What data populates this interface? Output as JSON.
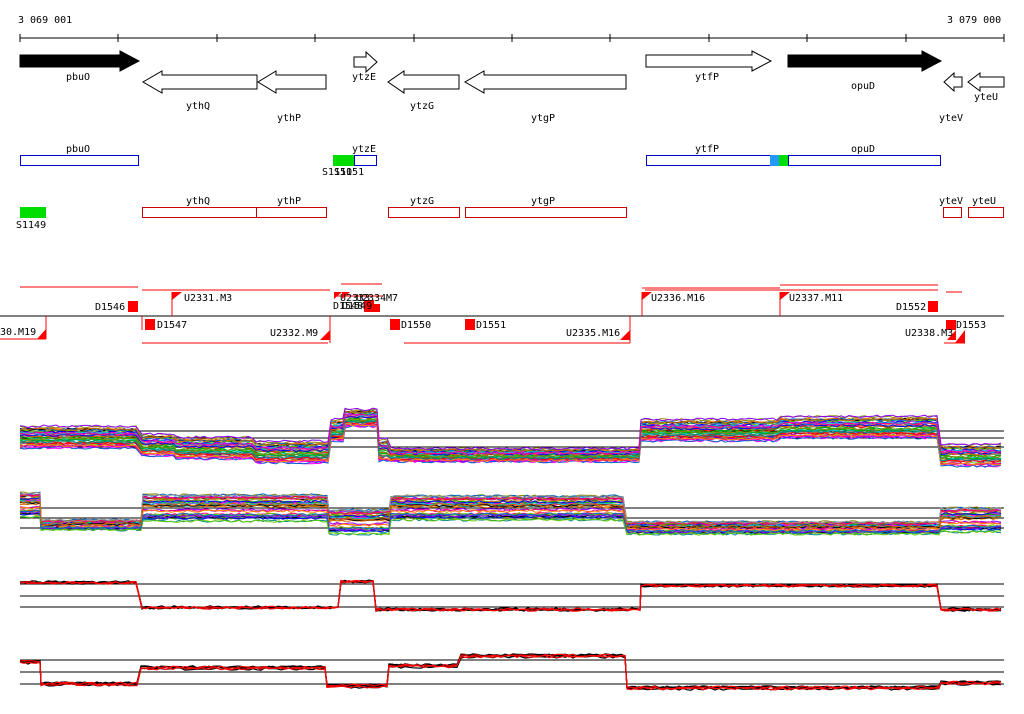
{
  "ruler": {
    "start_label": "3 069 001",
    "end_label": "3 079 000"
  },
  "genes": [
    {
      "name": "pbuO",
      "strand": "+",
      "filled": true
    },
    {
      "name": "ythQ",
      "strand": "-",
      "filled": false
    },
    {
      "name": "ythP",
      "strand": "-",
      "filled": false
    },
    {
      "name": "ytzE",
      "strand": "+",
      "filled": false
    },
    {
      "name": "ytzG",
      "strand": "-",
      "filled": false
    },
    {
      "name": "ytgP",
      "strand": "-",
      "filled": false
    },
    {
      "name": "ytfP",
      "strand": "+",
      "filled": false
    },
    {
      "name": "opuD",
      "strand": "+",
      "filled": true
    },
    {
      "name": "yteV",
      "strand": "-",
      "filled": false
    },
    {
      "name": "yteU",
      "strand": "-",
      "filled": false
    }
  ],
  "plus_boxes": [
    "pbuO",
    "ytzE",
    "ytfP",
    "opuD"
  ],
  "minus_boxes": [
    "ythQ",
    "ythP",
    "ytzG",
    "ytgP",
    "yteV",
    "yteU"
  ],
  "sigma_labels": [
    "S1150",
    "S1151",
    "S1149"
  ],
  "upper_segment_labels": [
    "D1546",
    "U2331.M3",
    "U2333",
    "U2334",
    "D1548",
    "D1549",
    "M7",
    "U2336.M16",
    "U2337.M11",
    "D1552"
  ],
  "lower_segment_labels": [
    "30.M19",
    "D1547",
    "U2332.M9",
    "D1550",
    "D1551",
    "U2335.M16",
    "U2338.M3",
    "D1553"
  ],
  "colors": {
    "gene_plus_box": "#0000cc",
    "gene_minus_box": "#cc0000",
    "sigma_box": "#00dd00",
    "sigma_blue": "#2299ff",
    "segment": "#ff0000",
    "profile_red": "#ff0000"
  }
}
